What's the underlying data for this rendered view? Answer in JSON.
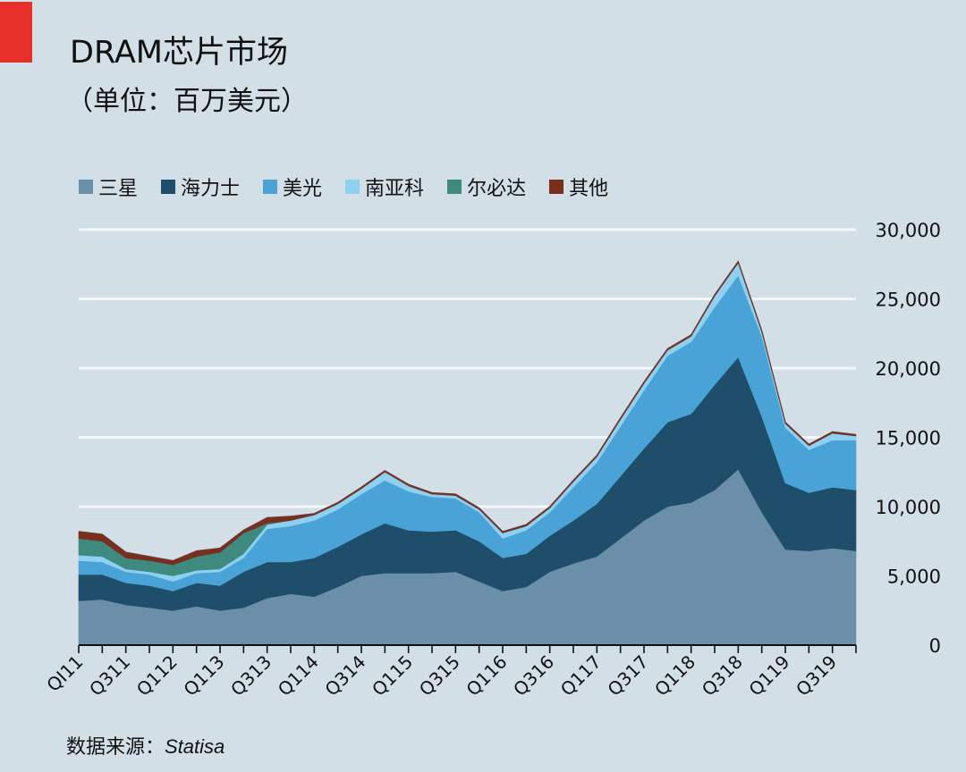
{
  "header": {
    "title": "DRAM芯片市场",
    "subtitle": "（单位：百万美元）"
  },
  "source": {
    "label": "数据来源：",
    "name": "Statisa"
  },
  "chart_data": {
    "type": "area",
    "stacked": true,
    "title": "DRAM芯片市场",
    "subtitle": "（单位：百万美元）",
    "xlabel": "",
    "ylabel": "",
    "ylim": [
      0,
      30000
    ],
    "yticks": [
      0,
      5000,
      10000,
      15000,
      20000,
      25000,
      30000
    ],
    "ytick_labels": [
      "0",
      "5,000",
      "10,000",
      "15,000",
      "20,000",
      "25,000",
      "30,000"
    ],
    "y_axis_side": "right",
    "grid": true,
    "legend_position": "top",
    "xtick_labels": [
      "QI11",
      "",
      "Q311",
      "",
      "Q112",
      "",
      "Q113",
      "",
      "Q313",
      "",
      "Q114",
      "",
      "Q314",
      "",
      "Q115",
      "",
      "Q315",
      "",
      "Q116",
      "",
      "Q316",
      "",
      "Q117",
      "",
      "Q317",
      "",
      "Q118",
      "",
      "Q318",
      "",
      "Q119",
      "",
      "Q319",
      ""
    ],
    "series": [
      {
        "name": "三星",
        "color": "#6b8fa8",
        "values": [
          3200,
          3300,
          2900,
          2700,
          2500,
          2800,
          2500,
          2700,
          3400,
          3700,
          3500,
          4200,
          5000,
          5200,
          5200,
          5200,
          5300,
          4600,
          3900,
          4200,
          5300,
          5900,
          6400,
          7700,
          9000,
          10000,
          10300,
          11200,
          12700,
          9600,
          6900,
          6800,
          7000,
          6800
        ]
      },
      {
        "name": "海力士",
        "color": "#1f4e6a",
        "values": [
          1900,
          1800,
          1600,
          1600,
          1400,
          1700,
          1800,
          2600,
          2600,
          2300,
          2800,
          2900,
          3000,
          3600,
          3100,
          3000,
          3000,
          2900,
          2400,
          2400,
          2600,
          3100,
          3800,
          4500,
          5200,
          6100,
          6400,
          7600,
          8100,
          6900,
          4800,
          4200,
          4400,
          4400
        ]
      },
      {
        "name": "美光",
        "color": "#4aa3d6",
        "values": [
          1000,
          900,
          800,
          800,
          700,
          700,
          1000,
          1000,
          2400,
          2600,
          2700,
          2700,
          2900,
          3100,
          2800,
          2500,
          2300,
          2100,
          1400,
          1700,
          1700,
          2400,
          3000,
          3600,
          4200,
          4800,
          5200,
          5600,
          5900,
          5800,
          4000,
          3100,
          3400,
          3600
        ]
      },
      {
        "name": "南亚科",
        "color": "#8fd0f0",
        "values": [
          400,
          400,
          200,
          200,
          400,
          200,
          200,
          300,
          300,
          400,
          400,
          400,
          400,
          600,
          400,
          200,
          200,
          200,
          400,
          300,
          300,
          400,
          400,
          500,
          500,
          400,
          400,
          800,
          900,
          300,
          300,
          300,
          500,
          300
        ]
      },
      {
        "name": "尔必达",
        "color": "#3e8a7f",
        "values": [
          1200,
          1100,
          800,
          800,
          800,
          1000,
          1200,
          1500,
          100,
          0,
          0,
          0,
          0,
          0,
          0,
          0,
          0,
          0,
          0,
          0,
          0,
          0,
          0,
          0,
          0,
          0,
          0,
          0,
          0,
          0,
          0,
          0,
          0,
          0
        ]
      },
      {
        "name": "其他",
        "color": "#7a2e1e",
        "values": [
          500,
          500,
          400,
          300,
          300,
          400,
          300,
          200,
          400,
          300,
          100,
          100,
          100,
          100,
          100,
          100,
          100,
          100,
          100,
          100,
          100,
          100,
          100,
          100,
          100,
          100,
          100,
          100,
          100,
          100,
          100,
          100,
          100,
          100
        ]
      }
    ]
  }
}
